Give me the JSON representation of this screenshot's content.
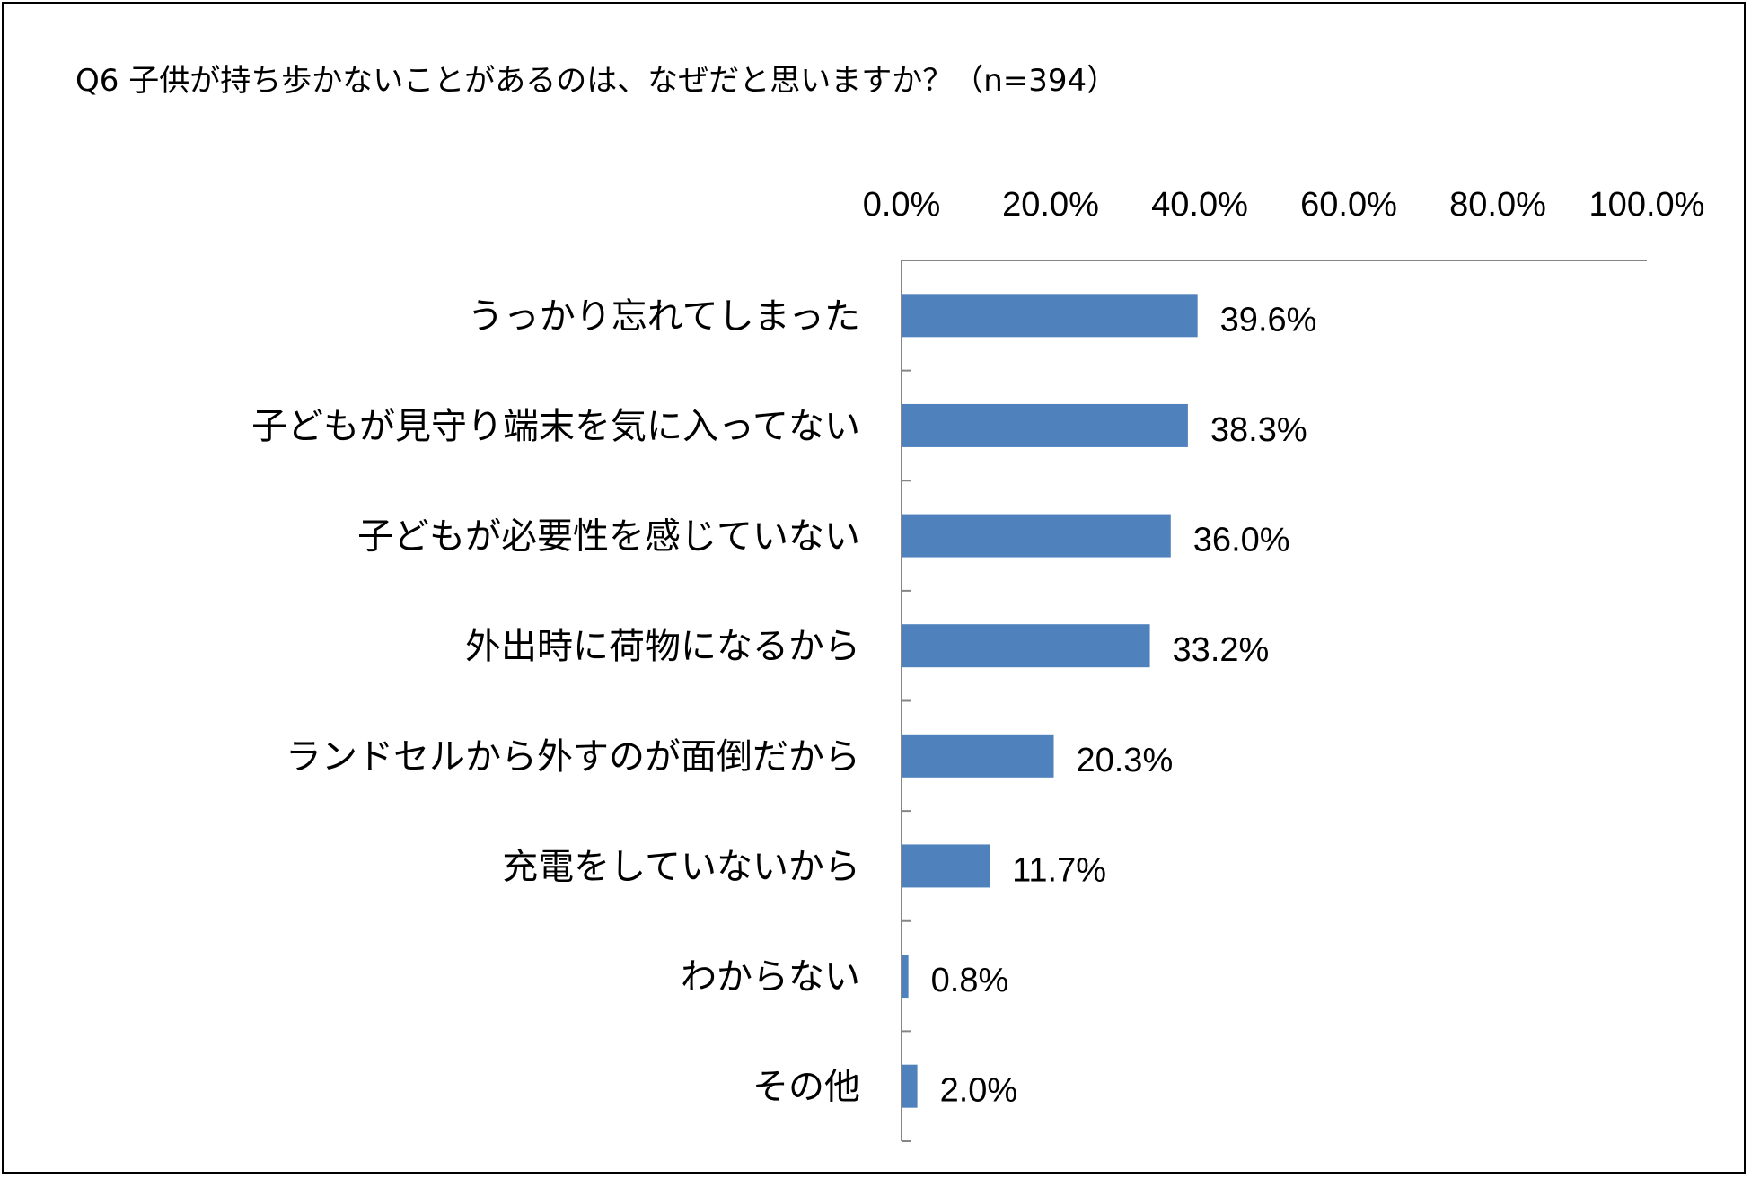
{
  "chart_data": {
    "type": "bar",
    "orientation": "horizontal",
    "title": "Q6 子供が持ち歩かないことがあるのは、なぜだと思いますか？（n=394）",
    "categories": [
      "うっかり忘れてしまった",
      "子どもが見守り端末を気に入ってない",
      "子どもが必要性を感じていない",
      "外出時に荷物になるから",
      "ランドセルから外すのが面倒だから",
      "充電をしていないから",
      "わからない",
      "その他"
    ],
    "values": [
      39.6,
      38.3,
      36.0,
      33.2,
      20.3,
      11.7,
      0.8,
      2.0
    ],
    "value_labels": [
      "39.6%",
      "38.3%",
      "36.0%",
      "33.2%",
      "20.3%",
      "11.7%",
      "0.8%",
      "2.0%"
    ],
    "xlim": [
      0,
      100
    ],
    "xticks": [
      0,
      20,
      40,
      60,
      80,
      100
    ],
    "xtick_labels": [
      "0.0%",
      "20.0%",
      "40.0%",
      "60.0%",
      "80.0%",
      "100.0%"
    ],
    "x_axis_position": "top",
    "grid": false,
    "legend": "none",
    "bar_color": "#4F81BD"
  }
}
